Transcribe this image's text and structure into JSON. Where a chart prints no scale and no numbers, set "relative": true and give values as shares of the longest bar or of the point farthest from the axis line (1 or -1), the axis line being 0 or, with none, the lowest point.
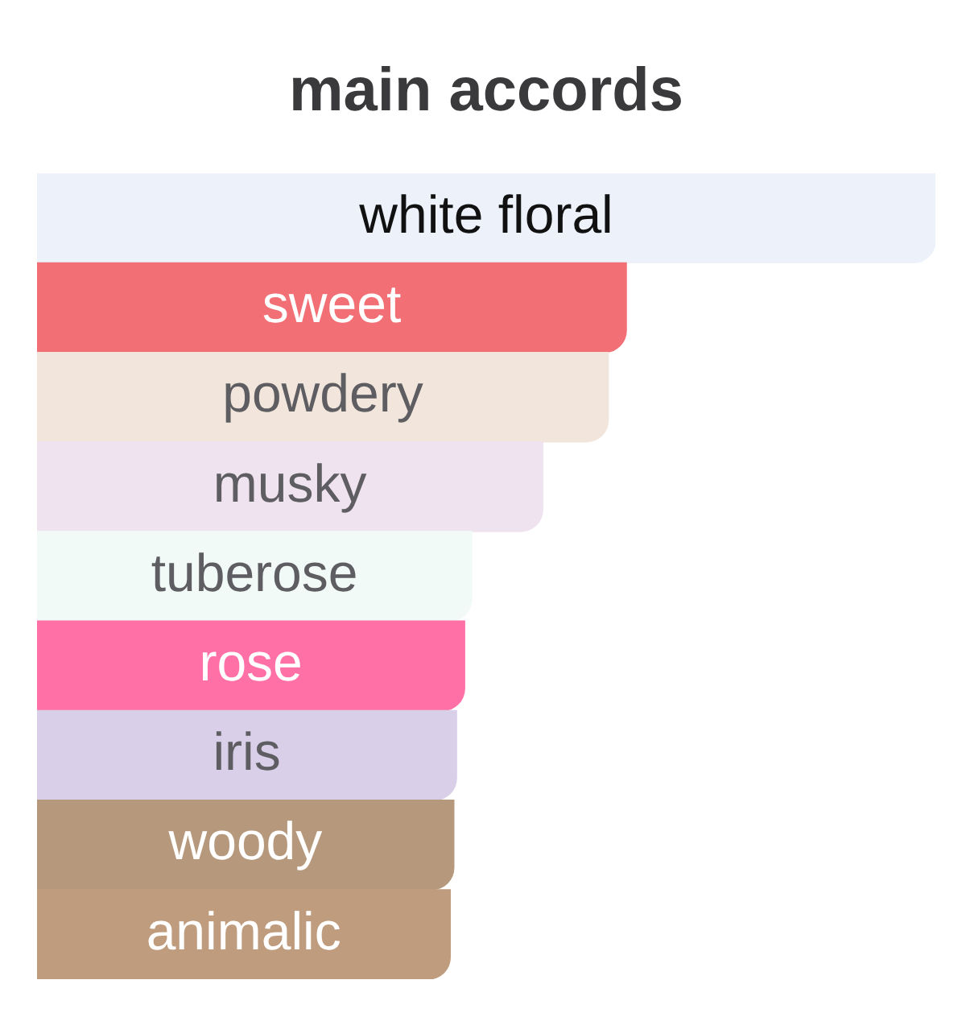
{
  "chart_data": {
    "type": "bar",
    "title": "main accords",
    "orientation": "horizontal",
    "relative": true,
    "categories": [
      "white floral",
      "sweet",
      "powdery",
      "musky",
      "tuberose",
      "rose",
      "iris",
      "woody",
      "animalic"
    ],
    "values": [
      1,
      0.656,
      0.636,
      0.563,
      0.484,
      0.476,
      0.467,
      0.464,
      0.46
    ],
    "colors": [
      "#ecf1fa",
      "#f27075",
      "#f2e6dc",
      "#efe3f0",
      "#f2faf7",
      "#ff70a6",
      "#d9cfe8",
      "#b6987d",
      "#bf9c7d"
    ]
  }
}
